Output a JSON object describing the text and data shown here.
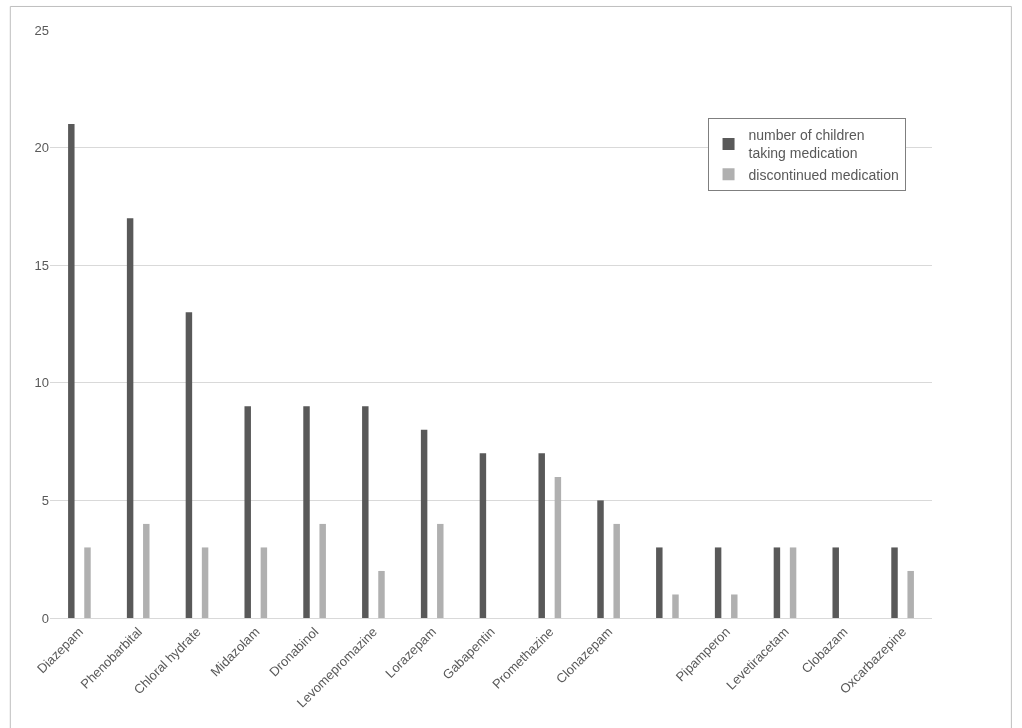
{
  "chart_data": {
    "type": "bar",
    "categories": [
      "Diazepam",
      "Phenobarbital",
      "Chloral hydrate",
      "Midazolam",
      "Dronabinol",
      "Levomepromazine",
      "Lorazepam",
      "Gabapentin",
      "Promethazine",
      "Clonazepam",
      null,
      "Pipamperon",
      "Levetiracetam",
      "Clobazam",
      "Oxcarbazepine"
    ],
    "series": [
      {
        "name": "number of children\ntaking medication",
        "color": "#595959",
        "values": [
          21,
          17,
          13,
          9,
          9,
          9,
          8,
          7,
          7,
          5,
          3,
          3,
          3,
          3,
          3
        ]
      },
      {
        "name": "discontinued medication",
        "color": "#b0b0b0",
        "values": [
          3,
          4,
          3,
          3,
          4,
          2,
          4,
          0,
          6,
          4,
          1,
          1,
          3,
          0,
          2
        ]
      }
    ],
    "ylim": [
      0,
      25
    ],
    "yticks": [
      0,
      5,
      10,
      15,
      20,
      25
    ],
    "grid": "y",
    "legend": "top right"
  }
}
